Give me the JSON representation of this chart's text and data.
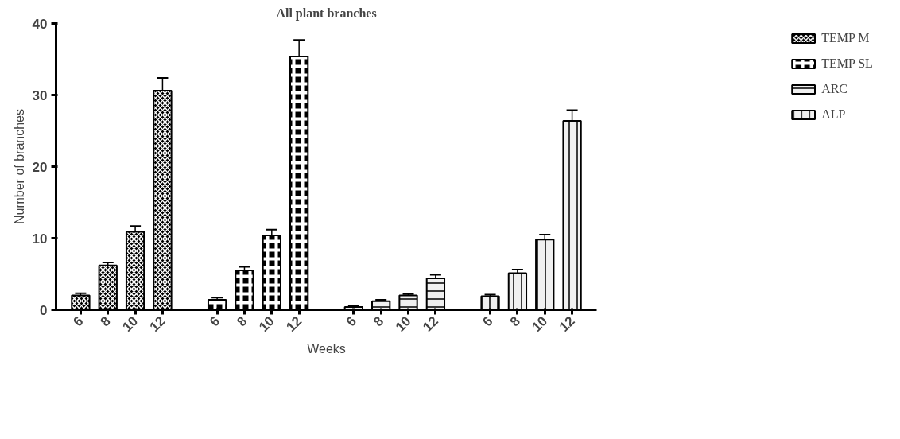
{
  "chart_data": {
    "type": "bar",
    "title": "All plant branches",
    "xlabel": "Weeks",
    "ylabel": "Number of branches",
    "categories": [
      "6",
      "8",
      "10",
      "12",
      null,
      "6",
      "8",
      "10",
      "12",
      null,
      "6",
      "8",
      "10",
      "12",
      null,
      "6",
      "8",
      "10",
      "12"
    ],
    "series": [
      {
        "name": "TEMP M",
        "color": "#000000",
        "values": [
          2.0,
          6.2,
          10.9,
          30.6,
          null,
          null,
          null,
          null,
          null,
          null,
          null,
          null,
          null,
          null,
          null,
          null,
          null,
          null,
          null
        ],
        "errors": [
          0.3,
          0.4,
          0.8,
          1.8,
          null,
          null,
          null,
          null,
          null,
          null,
          null,
          null,
          null,
          null,
          null,
          null,
          null,
          null,
          null
        ]
      },
      {
        "name": "TEMP SL",
        "color": "#000000",
        "values": [
          null,
          null,
          null,
          null,
          null,
          1.4,
          5.5,
          10.4,
          35.4,
          null,
          null,
          null,
          null,
          null,
          null,
          null,
          null,
          null,
          null
        ],
        "errors": [
          null,
          null,
          null,
          null,
          null,
          0.3,
          0.5,
          0.8,
          2.3,
          null,
          null,
          null,
          null,
          null,
          null,
          null,
          null,
          null,
          null
        ]
      },
      {
        "name": "ARC",
        "color": "#f0f0f0",
        "values": [
          null,
          null,
          null,
          null,
          null,
          null,
          null,
          null,
          null,
          null,
          0.4,
          1.2,
          2.0,
          4.4,
          null,
          null,
          null,
          null,
          null
        ],
        "errors": [
          null,
          null,
          null,
          null,
          null,
          null,
          null,
          null,
          null,
          null,
          0.1,
          0.2,
          0.2,
          0.5,
          null,
          null,
          null,
          null,
          null
        ]
      },
      {
        "name": "ALP",
        "color": "#f0f0f0",
        "values": [
          null,
          null,
          null,
          null,
          null,
          null,
          null,
          null,
          null,
          null,
          null,
          null,
          null,
          null,
          null,
          1.9,
          5.1,
          9.8,
          26.4
        ],
        "errors": [
          null,
          null,
          null,
          null,
          null,
          null,
          null,
          null,
          null,
          null,
          null,
          null,
          null,
          null,
          null,
          0.2,
          0.5,
          0.7,
          1.5
        ]
      }
    ],
    "ylim": [
      0,
      40
    ],
    "yticks": [
      0,
      10,
      20,
      30,
      40
    ],
    "grid": false,
    "legend": "top right"
  }
}
